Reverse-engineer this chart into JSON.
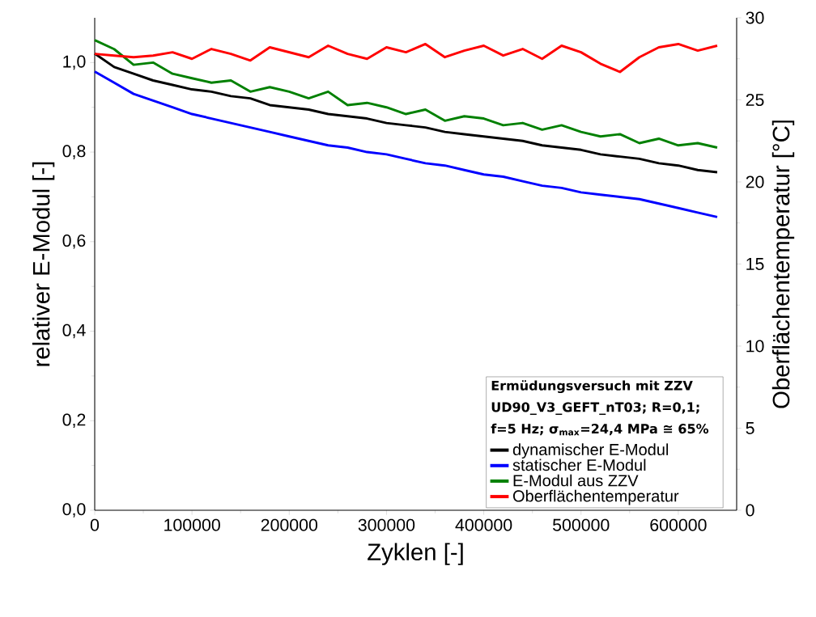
{
  "chart_data": {
    "type": "line",
    "xlabel": "Zyklen [-]",
    "ylabel": "relativer E-Modul [-]",
    "y2label": "Oberflächentemperatur [°C]",
    "legend_title": "Ermüdungsversuch mit ZZV UD90_V3_GEFT_nT03; R=0,1; f=5 Hz; σ$_{max}$=24,4 MPa ≅ 65%",
    "x": [
      0,
      20000,
      40000,
      60000,
      80000,
      100000,
      120000,
      140000,
      160000,
      180000,
      200000,
      220000,
      240000,
      260000,
      280000,
      300000,
      320000,
      340000,
      360000,
      380000,
      400000,
      420000,
      440000,
      460000,
      480000,
      500000,
      520000,
      540000,
      560000,
      580000,
      600000,
      620000,
      640000
    ],
    "series": [
      {
        "name": "dynamischer E-Modul",
        "color": "#000000",
        "values": [
          1.02,
          0.99,
          0.975,
          0.96,
          0.95,
          0.94,
          0.935,
          0.925,
          0.92,
          0.905,
          0.9,
          0.895,
          0.885,
          0.88,
          0.875,
          0.865,
          0.86,
          0.855,
          0.845,
          0.84,
          0.835,
          0.83,
          0.825,
          0.815,
          0.81,
          0.805,
          0.795,
          0.79,
          0.785,
          0.775,
          0.77,
          0.76,
          0.755
        ]
      },
      {
        "name": "statischer E-Modul",
        "color": "#0000ff",
        "values": [
          0.98,
          0.955,
          0.93,
          0.915,
          0.9,
          0.885,
          0.875,
          0.865,
          0.855,
          0.845,
          0.835,
          0.825,
          0.815,
          0.81,
          0.8,
          0.795,
          0.785,
          0.775,
          0.77,
          0.76,
          0.75,
          0.745,
          0.735,
          0.725,
          0.72,
          0.71,
          0.705,
          0.7,
          0.695,
          0.685,
          0.675,
          0.665,
          0.655
        ]
      },
      {
        "name": "E-Modul aus ZZV",
        "color": "#008000",
        "values": [
          1.05,
          1.03,
          0.995,
          1.0,
          0.975,
          0.965,
          0.955,
          0.96,
          0.935,
          0.945,
          0.935,
          0.92,
          0.935,
          0.905,
          0.91,
          0.9,
          0.885,
          0.895,
          0.87,
          0.88,
          0.875,
          0.86,
          0.865,
          0.85,
          0.86,
          0.845,
          0.835,
          0.84,
          0.82,
          0.83,
          0.815,
          0.82,
          0.81
        ]
      },
      {
        "name": "Oberflächentemperatur",
        "color": "#ff0000",
        "axis": "y2",
        "values": [
          27.8,
          27.7,
          27.6,
          27.7,
          27.9,
          27.5,
          28.1,
          27.8,
          27.4,
          28.2,
          27.9,
          27.6,
          28.3,
          27.8,
          27.5,
          28.2,
          27.9,
          28.4,
          27.6,
          28.0,
          28.3,
          27.7,
          28.1,
          27.5,
          28.3,
          27.9,
          27.2,
          26.7,
          27.6,
          28.2,
          28.4,
          28.0,
          28.3
        ]
      }
    ],
    "xlim": [
      0,
      660000
    ],
    "xticks": [
      0,
      100000,
      200000,
      300000,
      400000,
      500000,
      600000
    ],
    "ylim": [
      0,
      1.1
    ],
    "yticks": [
      {
        "value": 0,
        "label": "0,0"
      },
      {
        "value": 0.2,
        "label": "0,2"
      },
      {
        "value": 0.4,
        "label": "0,4"
      },
      {
        "value": 0.6,
        "label": "0,6"
      },
      {
        "value": 0.8,
        "label": "0,8"
      },
      {
        "value": 1.0,
        "label": "1,0"
      }
    ],
    "y2lim": [
      0,
      30
    ],
    "y2ticks": [
      0,
      5,
      10,
      15,
      20,
      25,
      30
    ],
    "grid": false,
    "legend": "bottom right",
    "marker": "none",
    "line_style": "solid"
  }
}
